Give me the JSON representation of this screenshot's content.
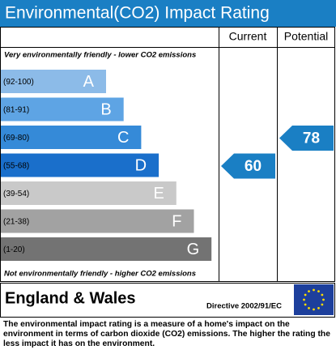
{
  "title": "Environmental(CO2) Impact Rating",
  "headers": {
    "current": "Current",
    "potential": "Potential"
  },
  "top_note": "Very environmentally friendly - lower CO2 emissions",
  "bands": [
    {
      "range": "(92-100)",
      "letter": "A",
      "color": "#8cbbe8"
    },
    {
      "range": "(81-91)",
      "letter": "B",
      "color": "#5ea4e4"
    },
    {
      "range": "(69-80)",
      "letter": "C",
      "color": "#358ad8"
    },
    {
      "range": "(55-68)",
      "letter": "D",
      "color": "#1a6fcb"
    },
    {
      "range": "(39-54)",
      "letter": "E",
      "color": "#c9c9c9"
    },
    {
      "range": "(21-38)",
      "letter": "F",
      "color": "#a2a2a2"
    },
    {
      "range": "(1-20)",
      "letter": "G",
      "color": "#737373"
    }
  ],
  "bottom_note": "Not environmentally friendly - higher CO2 emissions",
  "current": 60,
  "potential": 78,
  "arrow_color": "#1a7fc4",
  "footer": {
    "region": "England & Wales",
    "directive": "Directive 2002/91/EC"
  },
  "description": "The environmental impact rating is a measure of a home's impact on the environment in terms of carbon dioxide (CO2) emissions. The higher the rating the less impact it has on the environment."
}
